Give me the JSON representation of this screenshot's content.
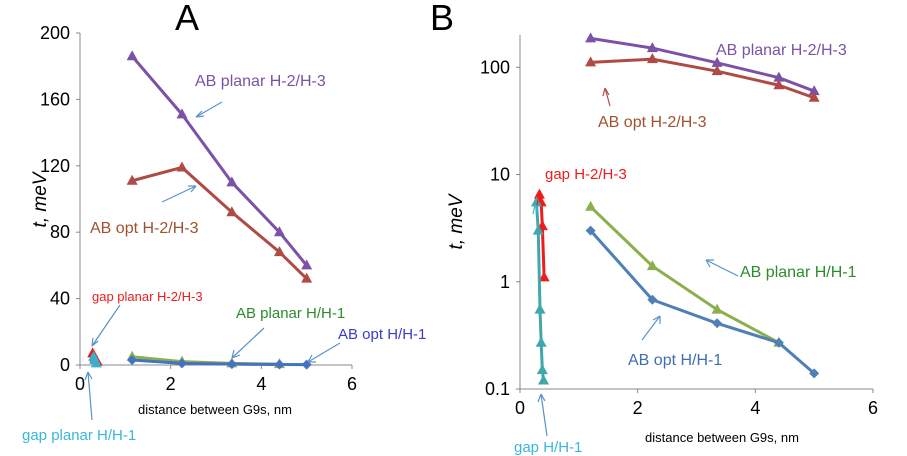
{
  "chart_data": [
    {
      "panel_label": "A",
      "type": "line",
      "xlabel": "distance between G9s, nm",
      "ylabel": "t, meV",
      "xlim": [
        0,
        6
      ],
      "ylim": [
        0,
        200
      ],
      "xticks": [
        "0",
        "2",
        "4",
        "6"
      ],
      "yticks": [
        "0",
        "40",
        "80",
        "120",
        "160",
        "200"
      ],
      "series": [
        {
          "name": "AB planar H-2/H-3",
          "color": "#7b52a8",
          "marker": "triangle",
          "x": [
            1.15,
            2.25,
            3.35,
            4.4,
            5.0
          ],
          "y": [
            186,
            151,
            110,
            80,
            60
          ]
        },
        {
          "name": "AB opt H-2/H-3",
          "color": "#b04a45",
          "marker": "triangle",
          "x": [
            1.15,
            2.25,
            3.35,
            4.4,
            5.0
          ],
          "y": [
            111,
            119,
            92,
            68,
            52
          ]
        },
        {
          "name": "AB planar H/H-1",
          "color": "#8caf4e",
          "marker": "triangle",
          "x": [
            1.15,
            2.25,
            3.35,
            4.4
          ],
          "y": [
            5,
            2,
            1,
            0.5
          ]
        },
        {
          "name": "AB opt H/H-1",
          "color": "#4472c4",
          "marker": "diamond",
          "x": [
            1.15,
            2.25,
            3.35,
            4.4,
            5.0
          ],
          "y": [
            3,
            1,
            0.5,
            0.3,
            0.2
          ]
        },
        {
          "name": "gap planar H-2/H-3",
          "color": "#ee1c1c",
          "marker": "triangle",
          "x": [
            0.28,
            0.33,
            0.38
          ],
          "y": [
            7,
            4,
            2
          ]
        },
        {
          "name": "gap planar H/H-1",
          "color": "#3ab0c8",
          "marker": "triangle",
          "x": [
            0.3,
            0.33,
            0.36
          ],
          "y": [
            5,
            3,
            1
          ]
        }
      ],
      "annotations": [
        {
          "text": "AB planar H-2/H-3",
          "color": "#7b52a8"
        },
        {
          "text": "AB opt H-2/H-3",
          "color": "#a0522d"
        },
        {
          "text": "gap planar H-2/H-3",
          "color": "#ee1c1c"
        },
        {
          "text": "AB planar H/H-1",
          "color": "#2c8c2c"
        },
        {
          "text": "AB opt H/H-1",
          "color": "#3b3bcc"
        },
        {
          "text": "gap planar H/H-1",
          "color": "#3ab7dc"
        }
      ]
    },
    {
      "panel_label": "B",
      "type": "line",
      "yscale": "log",
      "xlabel": "distance between G9s, nm",
      "ylabel": "t, meV",
      "xlim": [
        0,
        6
      ],
      "ylim": [
        0.1,
        200
      ],
      "xticks": [
        "0",
        "2",
        "4",
        "6"
      ],
      "yticks": [
        "0.1",
        "1",
        "10",
        "100"
      ],
      "series": [
        {
          "name": "AB planar H-2/H-3",
          "color": "#7b52a8",
          "marker": "triangle",
          "x": [
            1.2,
            2.25,
            3.35,
            4.4,
            5.0
          ],
          "y": [
            186,
            151,
            110,
            80,
            60
          ]
        },
        {
          "name": "AB opt H-2/H-3",
          "color": "#b04a45",
          "marker": "triangle",
          "x": [
            1.2,
            2.25,
            3.35,
            4.4,
            5.0
          ],
          "y": [
            111,
            119,
            92,
            68,
            52
          ]
        },
        {
          "name": "AB planar H/H-1",
          "color": "#8caf4e",
          "marker": "triangle",
          "x": [
            1.2,
            2.25,
            3.35,
            4.4
          ],
          "y": [
            5.0,
            1.4,
            0.55,
            0.27
          ]
        },
        {
          "name": "AB opt H/H-1",
          "color": "#4f7fb5",
          "marker": "diamond",
          "x": [
            1.2,
            2.25,
            3.35,
            4.4,
            5.0
          ],
          "y": [
            3.0,
            0.68,
            0.41,
            0.27,
            0.14
          ]
        },
        {
          "name": "gap H-2/H-3",
          "color": "#ee1c1c",
          "marker": "triangle",
          "x": [
            0.33,
            0.36,
            0.38,
            0.41
          ],
          "y": [
            6.5,
            5.5,
            3.3,
            1.1
          ]
        },
        {
          "name": "gap H/H-1",
          "color": "#40a8aa",
          "marker": "triangle",
          "x": [
            0.28,
            0.31,
            0.34,
            0.36,
            0.38,
            0.4
          ],
          "y": [
            5.5,
            3.0,
            0.55,
            0.27,
            0.15,
            0.12
          ]
        }
      ],
      "annotations": [
        {
          "text": "AB planar H-2/H-3",
          "color": "#7b52a8"
        },
        {
          "text": "AB opt H-2/H-3",
          "color": "#a0522d"
        },
        {
          "text": "gap H-2/H-3",
          "color": "#ee1c1c"
        },
        {
          "text": "AB planar H/H-1",
          "color": "#2c8c2c"
        },
        {
          "text": "AB opt H/H-1",
          "color": "#3d6fb5"
        },
        {
          "text": "gap H/H-1",
          "color": "#3ab7dc"
        }
      ]
    }
  ]
}
